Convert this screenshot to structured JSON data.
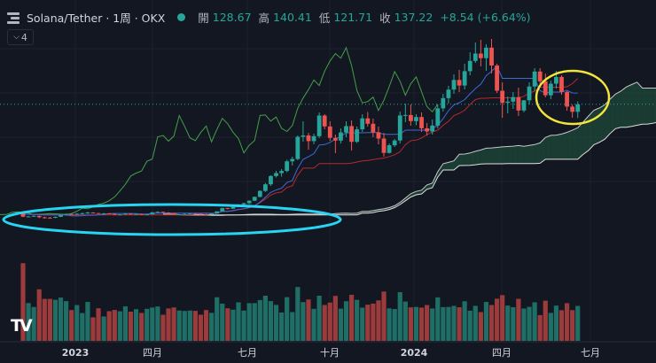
{
  "header": {
    "symbol": "Solana/Tether · 1周 · OKX",
    "open_label": "開",
    "open": "128.67",
    "high_label": "高",
    "high": "140.41",
    "low_label": "低",
    "low": "121.71",
    "close_label": "收",
    "close": "137.22",
    "change": "+8.54 (+6.64%)"
  },
  "legend_toggle": {
    "count": "4",
    "icon": "chevron-down-icon"
  },
  "branding": {
    "text": "TV"
  },
  "colors": {
    "up": "#26a69a",
    "down": "#ef5350",
    "cloud": "#5d2f33",
    "cloud_green": "#1f4a3a",
    "tenkan": "#3e6bd6",
    "kijun": "#b7282e",
    "chikou": "#43a047",
    "spanA": "#c8c8c8",
    "spanB": "#e0e0e0",
    "highlight_cyan": "#29d3f2",
    "highlight_yellow": "#f4e53b"
  },
  "chart_data": {
    "type": "candlestick",
    "interval": "1W",
    "x_axis_labels": [
      "2023",
      "四月",
      "七月",
      "十月",
      "2024",
      "四月",
      "七月"
    ],
    "y_range": [
      0,
      215
    ],
    "grid": true,
    "indicators": [
      "Ichimoku Cloud",
      "Volume"
    ],
    "candles": [
      [
        16.0,
        16.4,
        9.8,
        10.2
      ],
      [
        10.2,
        11.0,
        9.5,
        10.5
      ],
      [
        10.5,
        12.0,
        10.0,
        11.2
      ],
      [
        11.2,
        11.6,
        8.6,
        9.6
      ],
      [
        9.6,
        10.2,
        8.0,
        9.2
      ],
      [
        9.2,
        10.0,
        8.1,
        9.0
      ],
      [
        9.0,
        10.5,
        8.5,
        10.1
      ],
      [
        10.1,
        12.5,
        9.8,
        12.2
      ],
      [
        12.2,
        13.9,
        11.6,
        13.2
      ],
      [
        13.2,
        14.2,
        12.4,
        13.0
      ],
      [
        13.0,
        14.1,
        12.4,
        13.6
      ],
      [
        13.6,
        14.8,
        13.0,
        14.2
      ],
      [
        14.2,
        15.8,
        13.5,
        14.9
      ],
      [
        14.9,
        15.3,
        14.0,
        14.3
      ],
      [
        14.3,
        14.5,
        13.2,
        13.8
      ],
      [
        13.8,
        14.4,
        13.4,
        14.0
      ],
      [
        14.0,
        14.2,
        13.2,
        13.5
      ],
      [
        13.5,
        13.6,
        12.1,
        12.5
      ],
      [
        12.5,
        13.1,
        12.0,
        12.8
      ],
      [
        12.8,
        14.3,
        12.5,
        13.7
      ],
      [
        13.7,
        14.1,
        12.7,
        13.0
      ],
      [
        13.0,
        13.8,
        12.6,
        13.3
      ],
      [
        13.3,
        13.7,
        12.2,
        12.6
      ],
      [
        12.6,
        13.3,
        12.2,
        12.9
      ],
      [
        12.9,
        15.5,
        12.7,
        15.2
      ],
      [
        15.2,
        16.3,
        14.6,
        15.7
      ],
      [
        15.7,
        16.1,
        14.5,
        15.0
      ],
      [
        15.0,
        15.4,
        14.0,
        14.4
      ],
      [
        14.4,
        14.5,
        12.4,
        12.8
      ],
      [
        12.8,
        13.3,
        12.2,
        13.0
      ],
      [
        13.0,
        14.0,
        12.7,
        13.3
      ],
      [
        13.3,
        14.2,
        12.8,
        13.7
      ],
      [
        13.7,
        14.2,
        13.1,
        13.4
      ],
      [
        13.4,
        13.9,
        12.8,
        13.1
      ],
      [
        13.1,
        13.4,
        12.4,
        12.7
      ],
      [
        12.7,
        14.2,
        12.5,
        13.9
      ],
      [
        13.9,
        16.6,
        13.5,
        16.3
      ],
      [
        16.3,
        20.3,
        16.0,
        19.9
      ],
      [
        19.9,
        20.3,
        18.5,
        19.2
      ],
      [
        19.2,
        21.9,
        18.9,
        21.3
      ],
      [
        21.3,
        24.5,
        20.8,
        24.1
      ],
      [
        24.1,
        26.0,
        23.2,
        25.5
      ],
      [
        25.5,
        28.8,
        24.3,
        28.3
      ],
      [
        28.3,
        33.0,
        27.8,
        32.6
      ],
      [
        32.6,
        40.0,
        32.0,
        39.4
      ],
      [
        39.4,
        48.3,
        38.2,
        46.8
      ],
      [
        46.8,
        57.0,
        45.0,
        56.2
      ],
      [
        56.2,
        62.0,
        54.5,
        59.5
      ],
      [
        59.5,
        64.0,
        55.5,
        61.9
      ],
      [
        61.9,
        74.5,
        60.5,
        72.8
      ],
      [
        72.8,
        78.0,
        68.0,
        75.4
      ],
      [
        75.4,
        102.0,
        74.0,
        100.5
      ],
      [
        100.5,
        118.0,
        95.0,
        102.0
      ],
      [
        102.0,
        105.0,
        86.0,
        95.6
      ],
      [
        95.6,
        104.0,
        92.0,
        101.2
      ],
      [
        101.2,
        128.0,
        99.0,
        124.5
      ],
      [
        124.5,
        126.0,
        109.0,
        112.2
      ],
      [
        112.2,
        118.0,
        96.0,
        99.3
      ],
      [
        99.3,
        103.0,
        82.0,
        96.2
      ],
      [
        96.2,
        110.0,
        93.0,
        105.4
      ],
      [
        105.4,
        118.0,
        100.0,
        112.6
      ],
      [
        112.6,
        119.0,
        85.0,
        94.8
      ],
      [
        94.8,
        112.0,
        93.5,
        108.9
      ],
      [
        108.9,
        126.0,
        106.0,
        121.3
      ],
      [
        121.3,
        128.5,
        112.0,
        115.2
      ],
      [
        115.2,
        121.0,
        100.0,
        105.6
      ],
      [
        105.6,
        112.0,
        92.0,
        98.5
      ],
      [
        98.5,
        105.0,
        78.0,
        82.3
      ],
      [
        82.3,
        93.0,
        81.5,
        90.9
      ],
      [
        90.9,
        98.0,
        89.0,
        96.3
      ],
      [
        96.3,
        129.0,
        93.0,
        124.6
      ],
      [
        124.6,
        138.0,
        117.0,
        125.1
      ],
      [
        125.1,
        137.0,
        113.0,
        118.2
      ],
      [
        118.2,
        126.0,
        113.5,
        122.8
      ],
      [
        122.8,
        128.0,
        106.0,
        110.1
      ],
      [
        110.1,
        116.0,
        102.0,
        106.5
      ],
      [
        106.5,
        120.0,
        103.0,
        113.2
      ],
      [
        113.2,
        137.0,
        110.0,
        132.6
      ],
      [
        132.6,
        149.0,
        129.0,
        144.2
      ],
      [
        144.2,
        158.0,
        138.0,
        153.8
      ],
      [
        153.8,
        171.0,
        149.0,
        164.7
      ],
      [
        164.7,
        176.0,
        151.0,
        158.4
      ],
      [
        158.4,
        183.0,
        154.0,
        174.6
      ],
      [
        174.6,
        196.0,
        170.0,
        186.2
      ],
      [
        186.2,
        207.0,
        184.0,
        194.5
      ],
      [
        194.5,
        210.0,
        180.0,
        189.3
      ],
      [
        189.3,
        205.0,
        175.0,
        201.2
      ],
      [
        201.2,
        211.0,
        172.0,
        181.0
      ],
      [
        181.0,
        183.0,
        150.0,
        152.5
      ],
      [
        152.5,
        162.0,
        122.0,
        138.8
      ],
      [
        138.8,
        146.0,
        127.0,
        140.2
      ],
      [
        140.2,
        151.0,
        132.0,
        145.3
      ],
      [
        145.3,
        156.0,
        124.0,
        130.2
      ],
      [
        130.2,
        142.0,
        128.0,
        141.7
      ],
      [
        141.7,
        162.0,
        137.0,
        157.3
      ],
      [
        157.3,
        178.0,
        152.0,
        174.2
      ],
      [
        174.2,
        178.0,
        160.0,
        163.2
      ],
      [
        163.2,
        172.0,
        145.0,
        147.4
      ],
      [
        147.4,
        164.0,
        143.0,
        160.5
      ],
      [
        160.5,
        175.0,
        155.0,
        168.1
      ],
      [
        168.1,
        170.0,
        148.0,
        151.2
      ],
      [
        151.2,
        152.0,
        130.0,
        134.6
      ],
      [
        134.6,
        137.0,
        122.0,
        128.7
      ],
      [
        128.67,
        140.41,
        121.71,
        137.22
      ]
    ]
  }
}
